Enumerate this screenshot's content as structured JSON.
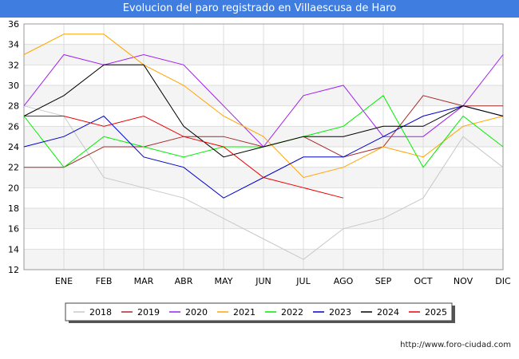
{
  "chart_data": {
    "type": "line",
    "title": "Evolucion del paro registrado en Villaescusa de Haro",
    "categories": [
      "",
      "ENE",
      "FEB",
      "MAR",
      "ABR",
      "MAY",
      "JUN",
      "JUL",
      "AGO",
      "SEP",
      "OCT",
      "NOV",
      "DIC"
    ],
    "ylim": [
      12,
      36
    ],
    "yticks": [
      12,
      14,
      16,
      18,
      20,
      22,
      24,
      26,
      28,
      30,
      32,
      34,
      36
    ],
    "grid": true,
    "legend_position": "bottom",
    "series": [
      {
        "name": "2018",
        "color": "#c8c8c8",
        "values": [
          28,
          27,
          21,
          20,
          19,
          17,
          15,
          13,
          16,
          17,
          19,
          25,
          22
        ]
      },
      {
        "name": "2019",
        "color": "#a52a2a",
        "values": [
          22,
          22,
          24,
          24,
          25,
          25,
          24,
          25,
          23,
          24,
          29,
          28,
          28
        ]
      },
      {
        "name": "2020",
        "color": "#a020f0",
        "values": [
          28,
          33,
          32,
          33,
          32,
          28,
          24,
          29,
          30,
          25,
          25,
          28,
          33
        ]
      },
      {
        "name": "2021",
        "color": "#ffa500",
        "values": [
          33,
          35,
          35,
          32,
          30,
          27,
          25,
          21,
          22,
          24,
          23,
          26,
          27
        ]
      },
      {
        "name": "2022",
        "color": "#00ee00",
        "values": [
          27,
          22,
          25,
          24,
          23,
          24,
          24,
          25,
          26,
          29,
          22,
          27,
          24
        ]
      },
      {
        "name": "2023",
        "color": "#0000cd",
        "values": [
          24,
          25,
          27,
          23,
          22,
          19,
          21,
          23,
          23,
          25,
          27,
          28,
          27
        ]
      },
      {
        "name": "2024",
        "color": "#000000",
        "values": [
          27,
          29,
          32,
          32,
          26,
          23,
          24,
          25,
          25,
          26,
          26,
          28,
          27
        ]
      },
      {
        "name": "2025",
        "color": "#ee0000",
        "values": [
          27,
          27,
          26,
          27,
          25,
          24,
          21,
          20,
          19,
          null,
          null,
          null,
          null
        ]
      }
    ]
  },
  "footer": {
    "url": "http://www.foro-ciudad.com"
  }
}
